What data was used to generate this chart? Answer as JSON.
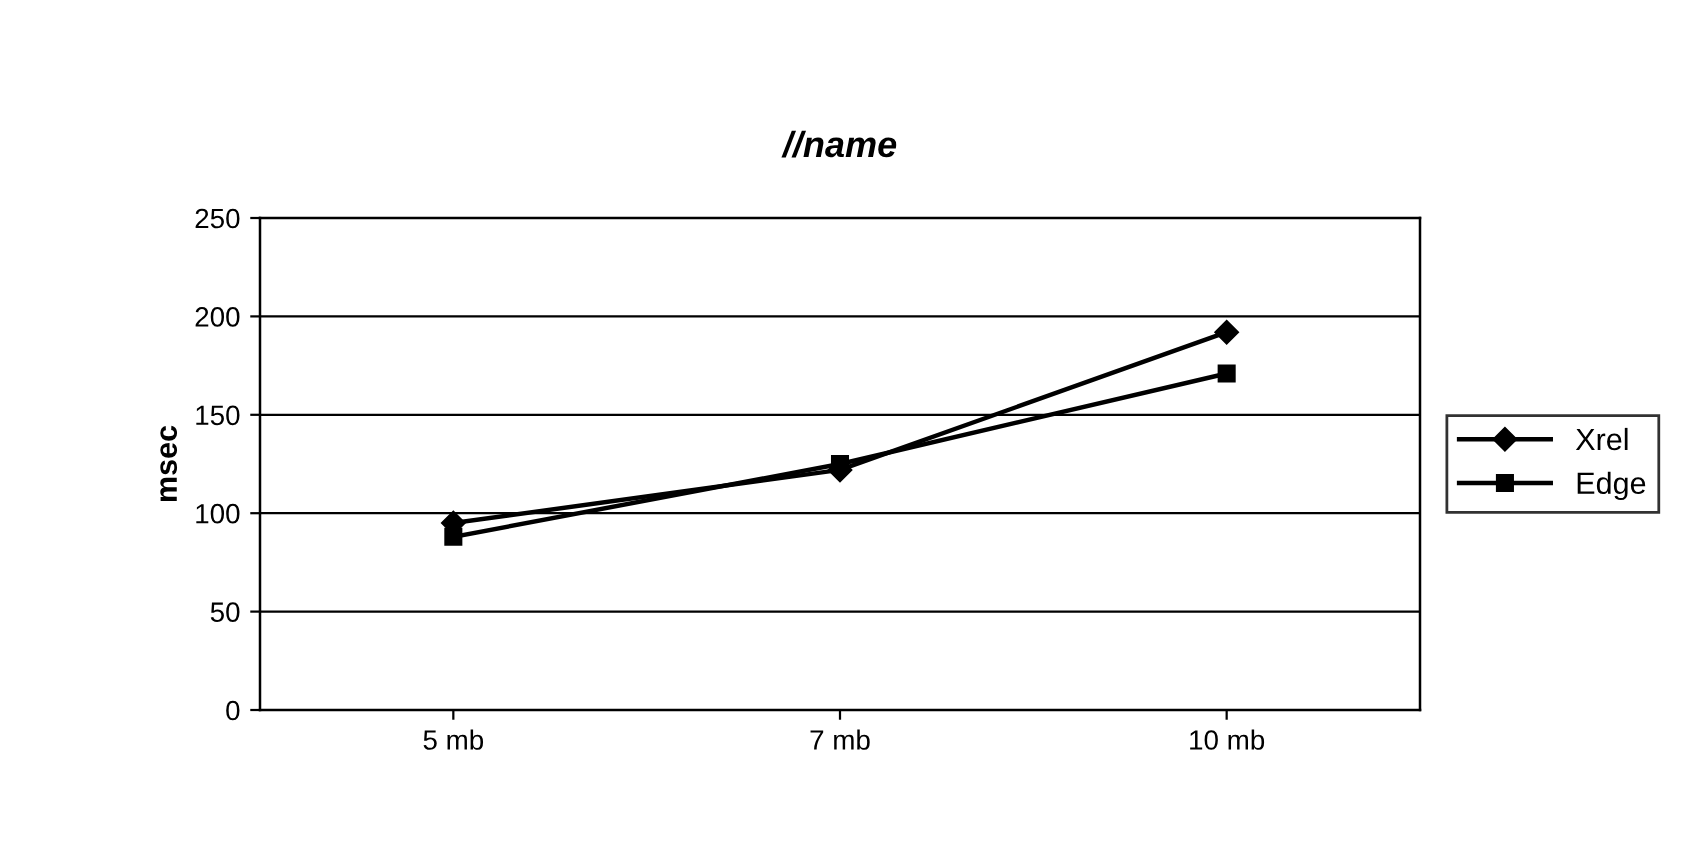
{
  "chart_data": {
    "type": "line",
    "title": "//name",
    "ylabel": "msec",
    "categories": [
      "5 mb",
      "7 mb",
      "10 mb"
    ],
    "series": [
      {
        "name": "Xrel",
        "color": "#000000",
        "marker": "diamond",
        "values": [
          95,
          122,
          192
        ]
      },
      {
        "name": "Edge",
        "color": "#000000",
        "marker": "square",
        "values": [
          88,
          125,
          171
        ]
      }
    ],
    "ylim": [
      0,
      250
    ],
    "yticks": [
      0,
      50,
      100,
      150,
      200,
      250
    ],
    "grid": "y",
    "legend": "right",
    "line_style": "solid"
  }
}
